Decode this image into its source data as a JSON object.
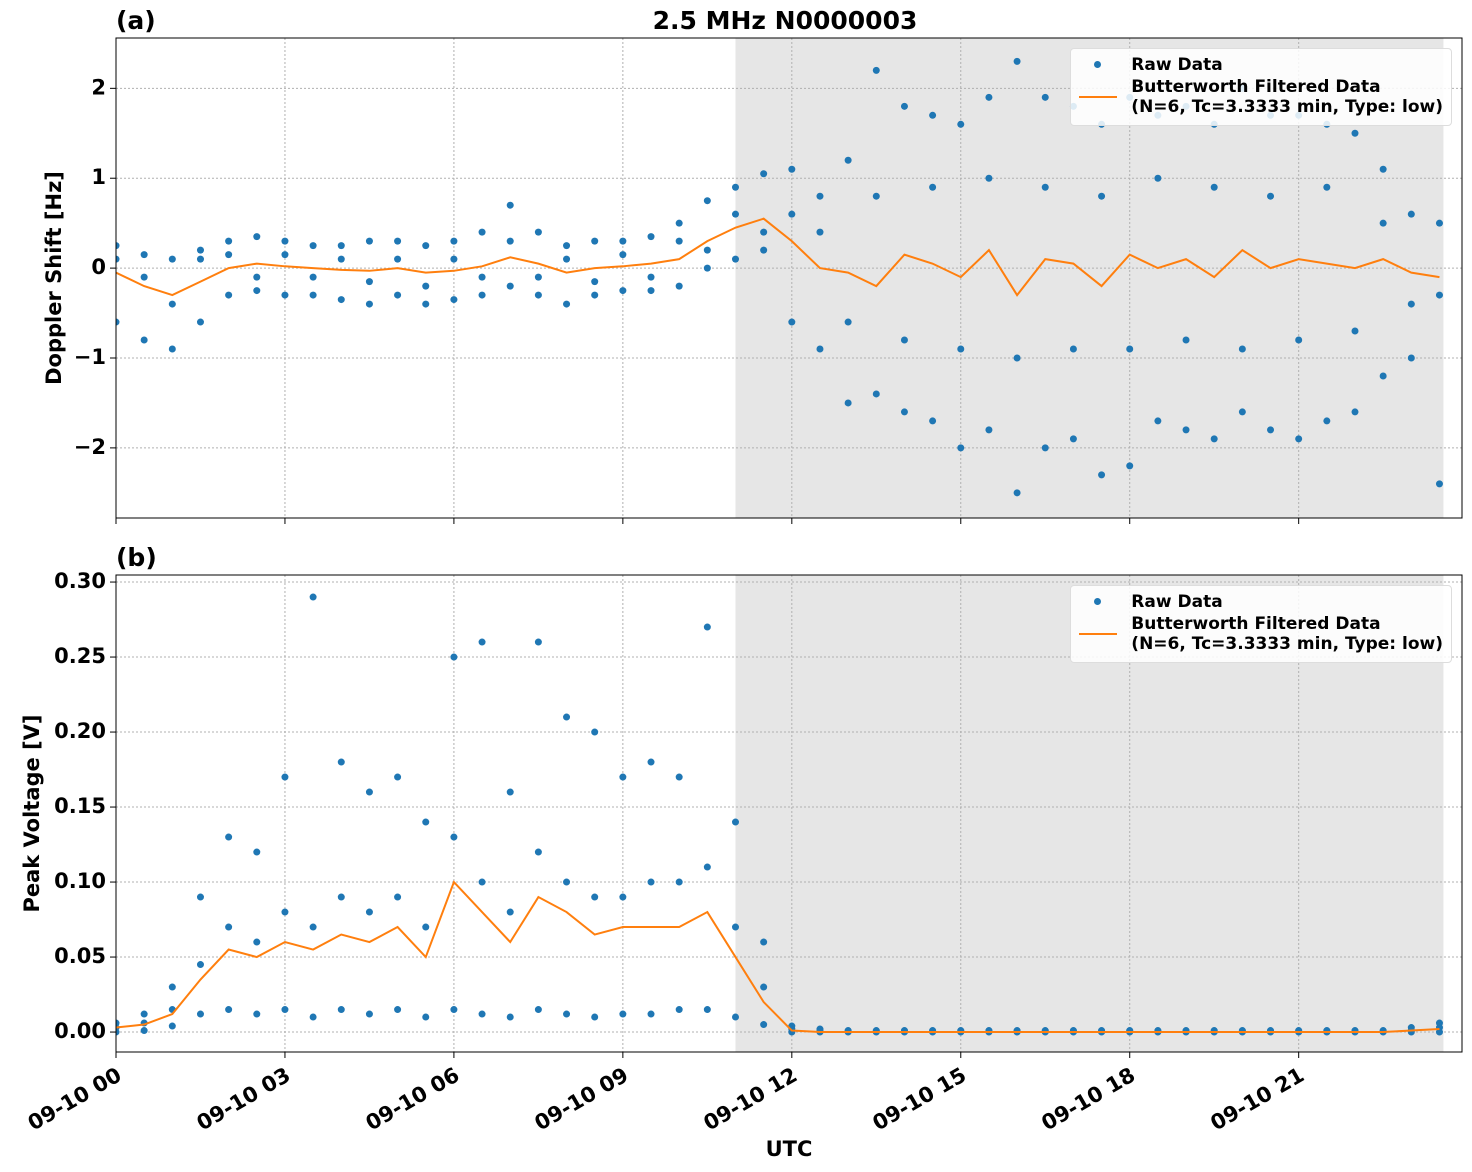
{
  "chart_data": [
    {
      "type": "line",
      "title": "2.5 MHz N0000003",
      "panel_label": "(a)",
      "ylabel": "Doppler Shift [Hz]",
      "xlim": [
        0,
        23.9
      ],
      "ylim": [
        -2.78,
        2.56
      ],
      "yticks": [
        {
          "value": -2,
          "label": "−2"
        },
        {
          "value": -1,
          "label": "−1"
        },
        0,
        1,
        2
      ],
      "grid": true,
      "legend": "upper right",
      "shaded_span": [
        11.0,
        23.57
      ],
      "shade_color": "#e6e6e6",
      "series": [
        {
          "name": "Raw Data",
          "color": "#1f77b4",
          "mode": "markers",
          "x": [
            0,
            0,
            0,
            0.5,
            0.5,
            0.5,
            1,
            1,
            1,
            1.5,
            1.5,
            1.5,
            2,
            2,
            2,
            2.5,
            2.5,
            2.5,
            3,
            3,
            3,
            3.5,
            3.5,
            3.5,
            4,
            4,
            4,
            4.5,
            4.5,
            4.5,
            5,
            5,
            5,
            5.5,
            5.5,
            5.5,
            6,
            6,
            6,
            6.5,
            6.5,
            6.5,
            7,
            7,
            7,
            7.5,
            7.5,
            7.5,
            8,
            8,
            8,
            8.5,
            8.5,
            8.5,
            9,
            9,
            9,
            9.5,
            9.5,
            9.5,
            10,
            10,
            10,
            10.5,
            10.5,
            10.5,
            11,
            11,
            11,
            11.5,
            11.5,
            11.5,
            12,
            12,
            12,
            12.5,
            12.5,
            12.5,
            13,
            13,
            13,
            13.5,
            13.5,
            13.5,
            14,
            14,
            14,
            14.5,
            14.5,
            14.5,
            15,
            15,
            15,
            15.5,
            15.5,
            15.5,
            16,
            16,
            16,
            16.5,
            16.5,
            16.5,
            17,
            17,
            17,
            17.5,
            17.5,
            17.5,
            18,
            18,
            18,
            18.5,
            18.5,
            18.5,
            19,
            19,
            19,
            19.5,
            19.5,
            19.5,
            20,
            20,
            20,
            20.5,
            20.5,
            20.5,
            21,
            21,
            21,
            21.5,
            21.5,
            21.5,
            22,
            22,
            22,
            22.5,
            22.5,
            22.5,
            23,
            23,
            23,
            23.5,
            23.5,
            23.5
          ],
          "values": [
            -0.6,
            0.1,
            0.25,
            -0.8,
            -0.1,
            0.15,
            -0.9,
            -0.4,
            0.1,
            -0.6,
            0.1,
            0.2,
            -0.3,
            0.15,
            0.3,
            -0.25,
            -0.1,
            0.35,
            -0.3,
            0.15,
            0.3,
            -0.3,
            -0.1,
            0.25,
            -0.35,
            0.1,
            0.25,
            -0.4,
            -0.15,
            0.3,
            -0.3,
            0.1,
            0.3,
            -0.4,
            -0.2,
            0.25,
            -0.35,
            0.1,
            0.3,
            -0.3,
            -0.1,
            0.4,
            -0.2,
            0.3,
            0.7,
            -0.3,
            -0.1,
            0.4,
            -0.4,
            0.1,
            0.25,
            -0.3,
            -0.15,
            0.3,
            -0.25,
            0.15,
            0.3,
            -0.25,
            -0.1,
            0.35,
            -0.2,
            0.3,
            0.5,
            0.0,
            0.2,
            0.75,
            0.1,
            0.6,
            0.9,
            0.2,
            0.4,
            1.05,
            -0.6,
            0.6,
            1.1,
            -0.9,
            0.4,
            0.8,
            -1.5,
            -0.6,
            1.2,
            -1.4,
            0.8,
            2.2,
            -1.6,
            -0.8,
            1.8,
            -1.7,
            0.9,
            1.7,
            -2.0,
            -0.9,
            1.6,
            -1.8,
            1.0,
            1.9,
            -2.5,
            -1.0,
            2.3,
            -2.0,
            0.9,
            1.9,
            -1.9,
            -0.9,
            1.8,
            -2.3,
            0.8,
            1.6,
            -2.2,
            -0.9,
            1.9,
            -1.7,
            1.0,
            1.7,
            -1.8,
            -0.8,
            1.8,
            -1.9,
            0.9,
            1.6,
            -1.6,
            -0.9,
            2.0,
            -1.8,
            0.8,
            1.7,
            -1.9,
            -0.8,
            1.7,
            -1.7,
            0.9,
            1.6,
            -1.6,
            -0.7,
            1.5,
            -1.2,
            0.5,
            1.1,
            -1.0,
            -0.4,
            0.6,
            -2.4,
            -0.3,
            0.5
          ]
        },
        {
          "name": "Butterworth Filtered Data\n(N=6, Tc=3.3333 min, Type: low)",
          "color": "#ff7f0e",
          "mode": "line",
          "x": [
            0,
            0.5,
            1,
            1.5,
            2,
            2.5,
            3,
            3.5,
            4,
            4.5,
            5,
            5.5,
            6,
            6.5,
            7,
            7.5,
            8,
            8.5,
            9,
            9.5,
            10,
            10.5,
            11,
            11.5,
            12,
            12.5,
            13,
            13.5,
            14,
            14.5,
            15,
            15.5,
            16,
            16.5,
            17,
            17.5,
            18,
            18.5,
            19,
            19.5,
            20,
            20.5,
            21,
            21.5,
            22,
            22.5,
            23,
            23.5
          ],
          "values": [
            -0.05,
            -0.2,
            -0.3,
            -0.15,
            0,
            0.05,
            0.02,
            0,
            -0.02,
            -0.03,
            0,
            -0.05,
            -0.03,
            0.02,
            0.12,
            0.05,
            -0.05,
            0,
            0.02,
            0.05,
            0.1,
            0.3,
            0.45,
            0.55,
            0.3,
            0,
            -0.05,
            -0.2,
            0.15,
            0.05,
            -0.1,
            0.2,
            -0.3,
            0.1,
            0.05,
            -0.2,
            0.15,
            0,
            0.1,
            -0.1,
            0.2,
            0,
            0.1,
            0.05,
            0,
            0.1,
            -0.05,
            -0.1
          ]
        }
      ]
    },
    {
      "type": "line",
      "panel_label": "(b)",
      "ylabel": "Peak Voltage [V]",
      "xlabel": "UTC",
      "xlim": [
        0,
        23.9
      ],
      "ylim": [
        -0.0133,
        0.3047
      ],
      "xticks": [
        {
          "value": 0,
          "label": "09-10 00"
        },
        {
          "value": 3,
          "label": "09-10 03"
        },
        {
          "value": 6,
          "label": "09-10 06"
        },
        {
          "value": 9,
          "label": "09-10 09"
        },
        {
          "value": 12,
          "label": "09-10 12"
        },
        {
          "value": 15,
          "label": "09-10 15"
        },
        {
          "value": 18,
          "label": "09-10 18"
        },
        {
          "value": 21,
          "label": "09-10 21"
        }
      ],
      "yticks": [
        {
          "value": 0,
          "label": "0.00"
        },
        {
          "value": 0.05,
          "label": "0.05"
        },
        {
          "value": 0.1,
          "label": "0.10"
        },
        {
          "value": 0.15,
          "label": "0.15"
        },
        {
          "value": 0.2,
          "label": "0.20"
        },
        {
          "value": 0.25,
          "label": "0.25"
        },
        {
          "value": 0.3,
          "label": "0.30"
        }
      ],
      "grid": true,
      "legend": "upper right",
      "shaded_span": [
        11.0,
        23.57
      ],
      "shade_color": "#e6e6e6",
      "series": [
        {
          "name": "Raw Data",
          "color": "#1f77b4",
          "mode": "markers",
          "x": [
            0,
            0,
            0,
            0.5,
            0.5,
            0.5,
            1,
            1,
            1,
            1.5,
            1.5,
            1.5,
            2,
            2,
            2,
            2.5,
            2.5,
            2.5,
            3,
            3,
            3,
            3.5,
            3.5,
            3.5,
            4,
            4,
            4,
            4.5,
            4.5,
            4.5,
            5,
            5,
            5,
            5.5,
            5.5,
            5.5,
            6,
            6,
            6,
            6.5,
            6.5,
            6.5,
            7,
            7,
            7,
            7.5,
            7.5,
            7.5,
            8,
            8,
            8,
            8.5,
            8.5,
            8.5,
            9,
            9,
            9,
            9.5,
            9.5,
            9.5,
            10,
            10,
            10,
            10.5,
            10.5,
            10.5,
            11,
            11,
            11,
            11.5,
            11.5,
            11.5,
            12,
            12,
            12,
            12.5,
            12.5,
            12.5,
            13,
            13,
            13,
            13.5,
            13.5,
            13.5,
            14,
            14,
            14,
            14.5,
            14.5,
            14.5,
            15,
            15,
            15,
            15.5,
            15.5,
            15.5,
            16,
            16,
            16,
            16.5,
            16.5,
            16.5,
            17,
            17,
            17,
            17.5,
            17.5,
            17.5,
            18,
            18,
            18,
            18.5,
            18.5,
            18.5,
            19,
            19,
            19,
            19.5,
            19.5,
            19.5,
            20,
            20,
            20,
            20.5,
            20.5,
            20.5,
            21,
            21,
            21,
            21.5,
            21.5,
            21.5,
            22,
            22,
            22,
            22.5,
            22.5,
            22.5,
            23,
            23,
            23,
            23.5,
            23.5,
            23.5
          ],
          "values": [
            0.0,
            0.003,
            0.006,
            0.001,
            0.006,
            0.012,
            0.004,
            0.015,
            0.03,
            0.012,
            0.045,
            0.09,
            0.015,
            0.07,
            0.13,
            0.012,
            0.06,
            0.12,
            0.015,
            0.08,
            0.17,
            0.01,
            0.07,
            0.29,
            0.015,
            0.09,
            0.18,
            0.012,
            0.08,
            0.16,
            0.015,
            0.09,
            0.17,
            0.01,
            0.07,
            0.14,
            0.015,
            0.13,
            0.25,
            0.012,
            0.1,
            0.26,
            0.01,
            0.08,
            0.16,
            0.015,
            0.12,
            0.26,
            0.012,
            0.1,
            0.21,
            0.01,
            0.09,
            0.2,
            0.012,
            0.09,
            0.17,
            0.012,
            0.1,
            0.18,
            0.015,
            0.1,
            0.17,
            0.015,
            0.11,
            0.27,
            0.01,
            0.07,
            0.14,
            0.005,
            0.03,
            0.06,
            0.0,
            0.002,
            0.004,
            0.0,
            0.001,
            0.002,
            0.0,
            0.0005,
            0.001,
            0.0,
            0.0005,
            0.001,
            0.0,
            0.0005,
            0.001,
            0.0,
            0.0005,
            0.001,
            0.0,
            0.0005,
            0.001,
            0.0,
            0.0005,
            0.001,
            0.0,
            0.0005,
            0.001,
            0.0,
            0.0005,
            0.001,
            0.0,
            0.0005,
            0.001,
            0.0,
            0.0005,
            0.001,
            0.0,
            0.0005,
            0.001,
            0.0,
            0.0005,
            0.001,
            0.0,
            0.0005,
            0.001,
            0.0,
            0.0005,
            0.001,
            0.0,
            0.0005,
            0.001,
            0.0,
            0.0005,
            0.001,
            0.0,
            0.0005,
            0.001,
            0.0,
            0.0005,
            0.001,
            0.0,
            0.0005,
            0.001,
            0.0,
            0.0005,
            0.001,
            0.0,
            0.001,
            0.003,
            0.0,
            0.003,
            0.006
          ]
        },
        {
          "name": "Butterworth Filtered Data\n(N=6, Tc=3.3333 min, Type: low)",
          "color": "#ff7f0e",
          "mode": "line",
          "x": [
            0,
            0.5,
            1,
            1.5,
            2,
            2.5,
            3,
            3.5,
            4,
            4.5,
            5,
            5.5,
            6,
            6.5,
            7,
            7.5,
            8,
            8.5,
            9,
            9.5,
            10,
            10.5,
            11,
            11.5,
            12,
            12.5,
            13,
            13.5,
            14,
            14.5,
            15,
            15.5,
            16,
            16.5,
            17,
            17.5,
            18,
            18.5,
            19,
            19.5,
            20,
            20.5,
            21,
            21.5,
            22,
            22.5,
            23,
            23.5
          ],
          "values": [
            0.003,
            0.005,
            0.012,
            0.035,
            0.055,
            0.05,
            0.06,
            0.055,
            0.065,
            0.06,
            0.07,
            0.05,
            0.1,
            0.08,
            0.06,
            0.09,
            0.08,
            0.065,
            0.07,
            0.07,
            0.07,
            0.08,
            0.05,
            0.02,
            0.001,
            0,
            0,
            0,
            0,
            0,
            0,
            0,
            0,
            0,
            0,
            0,
            0,
            0,
            0,
            0,
            0,
            0,
            0,
            0,
            0,
            0,
            0.001,
            0.002
          ]
        }
      ]
    }
  ]
}
